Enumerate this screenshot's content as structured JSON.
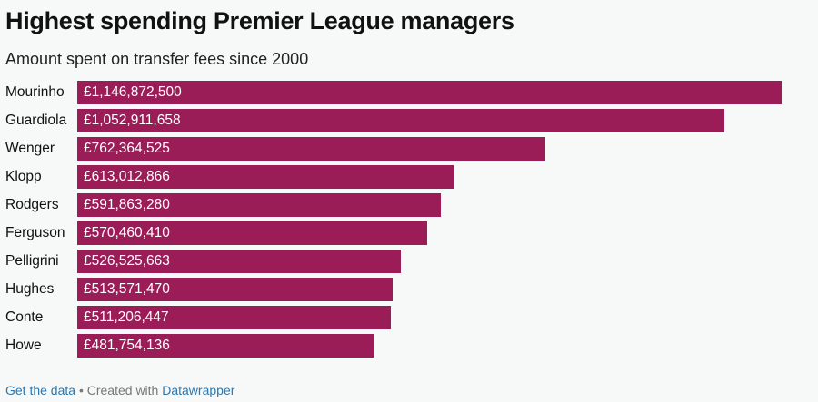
{
  "chart_data": {
    "type": "bar",
    "orientation": "horizontal",
    "title": "Highest spending Premier League managers",
    "subtitle": "Amount spent on transfer fees since 2000",
    "categories": [
      "Mourinho",
      "Guardiola",
      "Wenger",
      "Klopp",
      "Rodgers",
      "Ferguson",
      "Pelligrini",
      "Hughes",
      "Conte",
      "Howe"
    ],
    "values": [
      1146872500,
      1052911658,
      762364525,
      613012866,
      591863280,
      570460410,
      526525663,
      513571470,
      511206447,
      481754136
    ],
    "value_labels": [
      "£1,146,872,500",
      "£1,052,911,658",
      "£762,364,525",
      "£613,012,866",
      "£591,863,280",
      "£570,460,410",
      "£526,525,663",
      "£513,571,470",
      "£511,206,447",
      "£481,754,136"
    ],
    "bar_color": "#9b1d58",
    "grid": false,
    "legend": "none"
  },
  "footer": {
    "get_data": "Get the data",
    "separator": " • Created with ",
    "datawrapper": "Datawrapper"
  }
}
